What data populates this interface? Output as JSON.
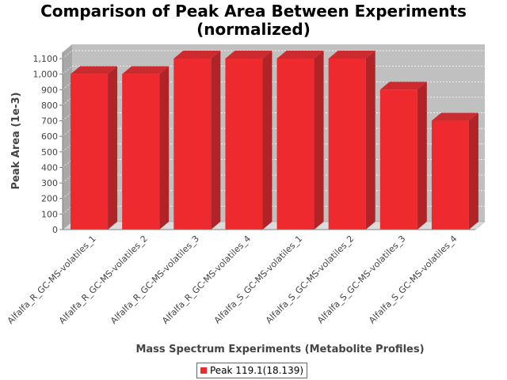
{
  "chart_data": {
    "type": "bar",
    "title_line1": "Comparison of Peak Area Between Experiments",
    "title_line2": "(normalized)",
    "xlabel": "Mass Spectrum Experiments (Metabolite Profiles)",
    "ylabel": "Peak Area (1e-3)",
    "ylim": [
      0,
      1100
    ],
    "yticks": [
      0,
      100,
      200,
      300,
      400,
      500,
      600,
      700,
      800,
      900,
      1000,
      1100
    ],
    "ytick_labels": [
      "0",
      "100",
      "200",
      "300",
      "400",
      "500",
      "600",
      "700",
      "800",
      "900",
      "1,000",
      "1,100"
    ],
    "categories": [
      "Alfalfa_R_GC-MS-volatiles_1",
      "Alfalfa_R_GC-MS-volatiles_2",
      "Alfalfa_R_GC-MS-volatiles_3",
      "Alfalfa_R_GC-MS-volatiles_4",
      "Alfalfa_S_GC-MS-volatiles_1",
      "Alfalfa_S_GC-MS-volatiles_2",
      "Alfalfa_S_GC-MS-volatiles_3",
      "Alfalfa_S_GC-MS-volatiles_4"
    ],
    "series": [
      {
        "name": "Peak 119.1(18.139)",
        "color": "#ee2a2e",
        "values": [
          1000,
          1000,
          1100,
          1100,
          1100,
          1100,
          900,
          700
        ]
      }
    ],
    "grid": true,
    "legend_position": "bottom"
  }
}
